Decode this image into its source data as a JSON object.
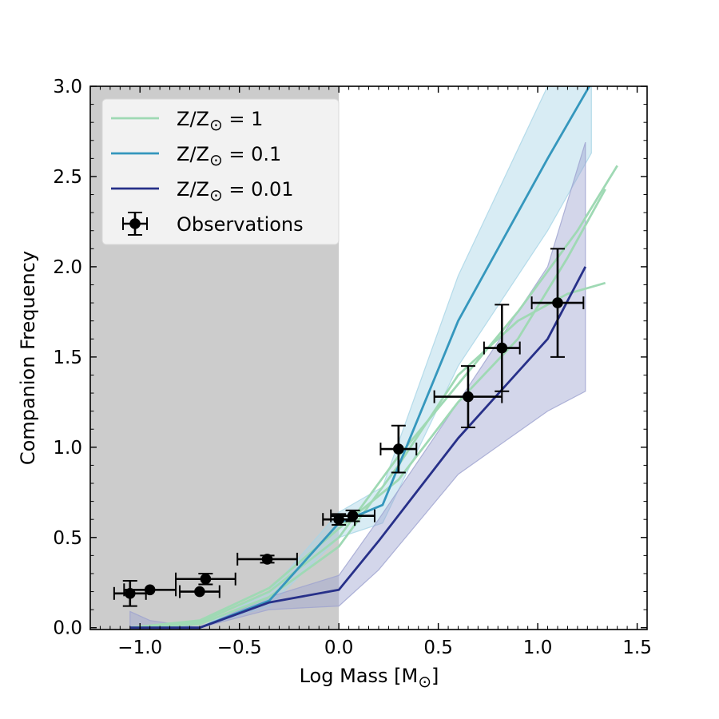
{
  "chart_data": {
    "type": "line",
    "xlabel": "Log Mass [M",
    "xlabel_suffix": "]",
    "ylabel": "Companion Frequency",
    "sun_symbol": "⊙",
    "xlim": [
      -1.25,
      1.55
    ],
    "ylim": [
      -0.01,
      3.0
    ],
    "x_ticks": [
      -1.0,
      -0.5,
      0.0,
      0.5,
      1.0,
      1.5
    ],
    "x_tick_labels": [
      "−1.0",
      "−0.5",
      "0.0",
      "0.5",
      "1.0",
      "1.5"
    ],
    "y_ticks": [
      0.0,
      0.5,
      1.0,
      1.5,
      2.0,
      2.5,
      3.0
    ],
    "y_tick_labels": [
      "0.0",
      "0.5",
      "1.0",
      "1.5",
      "2.0",
      "2.5",
      "3.0"
    ],
    "shaded_region": {
      "x_from": -1.25,
      "x_to": 0.0,
      "color": "#cccccc"
    },
    "colors": {
      "z1": "#9fd9b4",
      "z01": "#3597bd",
      "z01_band": "#a8d4e6",
      "z001": "#273089",
      "z001_band": "#9da3d0",
      "obs": "#000000"
    },
    "legend": [
      {
        "label_prefix": "Z/Z",
        "label_suffix": " = 1",
        "series": "z1"
      },
      {
        "label_prefix": "Z/Z",
        "label_suffix": " = 0.1",
        "series": "z01"
      },
      {
        "label_prefix": "Z/Z",
        "label_suffix": " = 0.01",
        "series": "z001"
      },
      {
        "label": "Observations",
        "series": "obs"
      }
    ],
    "series": [
      {
        "name": "Z/Z⊙ = 1 (run 1)",
        "group": "z1",
        "x": [
          -1.05,
          -0.7,
          -0.35,
          0.0,
          0.3,
          0.6,
          0.9,
          1.2,
          1.4
        ],
        "y": [
          0.0,
          0.03,
          0.2,
          0.5,
          0.95,
          1.35,
          1.75,
          2.2,
          2.56
        ]
      },
      {
        "name": "Z/Z⊙ = 1 (run 2)",
        "group": "z1",
        "x": [
          -1.05,
          -0.7,
          -0.35,
          0.0,
          0.3,
          0.6,
          0.9,
          1.15,
          1.34
        ],
        "y": [
          0.0,
          0.02,
          0.17,
          0.45,
          0.9,
          1.4,
          1.7,
          1.85,
          1.91
        ]
      },
      {
        "name": "Z/Z⊙ = 1 (run 3)",
        "group": "z1",
        "x": [
          -1.05,
          -0.7,
          -0.35,
          0.0,
          0.3,
          0.6,
          0.9,
          1.15,
          1.34
        ],
        "y": [
          0.0,
          0.04,
          0.22,
          0.55,
          0.82,
          1.25,
          1.6,
          2.05,
          2.43
        ]
      },
      {
        "name": "Z/Z⊙ = 0.1",
        "group": "z01",
        "x": [
          -1.05,
          -0.7,
          -0.35,
          0.0,
          0.22,
          0.6,
          1.05,
          1.27
        ],
        "y": [
          0.0,
          0.0,
          0.15,
          0.58,
          0.68,
          1.7,
          2.6,
          3.02
        ],
        "band_upper": [
          0.0,
          0.0,
          0.2,
          0.64,
          0.78,
          1.95,
          3.0,
          3.05
        ],
        "band_lower": [
          0.0,
          0.0,
          0.12,
          0.5,
          0.58,
          1.45,
          2.2,
          2.63
        ]
      },
      {
        "name": "Z/Z⊙ = 0.01",
        "group": "z001",
        "x": [
          -1.05,
          -0.7,
          -0.35,
          0.0,
          0.2,
          0.6,
          1.05,
          1.24
        ],
        "y": [
          0.0,
          0.0,
          0.14,
          0.21,
          0.48,
          1.05,
          1.6,
          2.0
        ],
        "band_upper": [
          0.09,
          0.0,
          0.17,
          0.29,
          0.6,
          1.25,
          2.0,
          2.69
        ],
        "band_lower": [
          0.0,
          0.0,
          0.1,
          0.12,
          0.32,
          0.85,
          1.2,
          1.31
        ],
        "band_upper_extra": {
          "x": [
            -1.05,
            -0.95,
            -0.7
          ],
          "y": [
            0.09,
            0.04,
            0.0
          ]
        }
      },
      {
        "name": "Observations",
        "group": "obs",
        "kind": "errorbar",
        "points": [
          {
            "x": -1.05,
            "y": 0.19,
            "xerr": 0.08,
            "yerr_lo": 0.07,
            "yerr_hi": 0.07
          },
          {
            "x": -0.95,
            "y": 0.21,
            "xerr": 0.13,
            "yerr_lo": 0.0,
            "yerr_hi": 0.0
          },
          {
            "x": -0.7,
            "y": 0.2,
            "xerr": 0.1,
            "yerr_lo": 0.0,
            "yerr_hi": 0.0
          },
          {
            "x": -0.67,
            "y": 0.27,
            "xerr": 0.15,
            "yerr_lo": 0.03,
            "yerr_hi": 0.03
          },
          {
            "x": -0.36,
            "y": 0.38,
            "xerr": 0.15,
            "yerr_lo": 0.02,
            "yerr_hi": 0.02
          },
          {
            "x": 0.0,
            "y": 0.6,
            "xerr": 0.08,
            "yerr_lo": 0.03,
            "yerr_hi": 0.03
          },
          {
            "x": 0.07,
            "y": 0.62,
            "xerr": 0.11,
            "yerr_lo": 0.03,
            "yerr_hi": 0.03
          },
          {
            "x": 0.3,
            "y": 0.99,
            "xerr": 0.09,
            "yerr_lo": 0.13,
            "yerr_hi": 0.13
          },
          {
            "x": 0.65,
            "y": 1.28,
            "xerr": 0.17,
            "yerr_lo": 0.17,
            "yerr_hi": 0.17
          },
          {
            "x": 0.82,
            "y": 1.55,
            "xerr": 0.09,
            "yerr_lo": 0.24,
            "yerr_hi": 0.24
          },
          {
            "x": 1.1,
            "y": 1.8,
            "xerr": 0.13,
            "yerr_lo": 0.3,
            "yerr_hi": 0.3
          }
        ]
      }
    ]
  }
}
